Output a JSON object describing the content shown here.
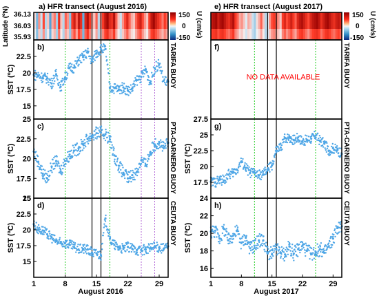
{
  "chart_data": {
    "type": "scatter",
    "colors": {
      "points": "#4ea6e6",
      "green_line": "#22cc22",
      "purple_line": "#b266d6",
      "event_line": "#000000",
      "na_text": "#ff0000",
      "frame": "#000000"
    },
    "panels": [
      {
        "id": "a",
        "kind": "heatmap",
        "title": "a) HFR transect  (August 2016)",
        "ylabel": "Latitude (ºN)",
        "yticks": [
          "36.13",
          "36.03",
          "35.93"
        ],
        "xlim": [
          1,
          31
        ],
        "colorbar": {
          "label": "U (cm/s)",
          "ticks": [
            "150",
            "0",
            "-150"
          ],
          "range": [
            -150,
            150
          ]
        },
        "stripes_u": [
          10,
          -60,
          40,
          -20,
          70,
          -30,
          20,
          -80,
          30,
          50,
          -40,
          90,
          20,
          -30,
          60,
          40,
          -50,
          80,
          110,
          60,
          120,
          90,
          -70,
          100,
          130,
          80,
          30,
          20,
          60,
          -30,
          40,
          80,
          120,
          140,
          100,
          90,
          130,
          60,
          20,
          -20,
          40,
          70,
          100,
          60,
          30,
          20,
          60,
          90,
          110,
          70,
          40,
          20,
          80,
          120,
          140,
          110,
          90,
          70,
          50,
          80,
          60
        ]
      },
      {
        "id": "b",
        "kind": "scatter",
        "panel_label": "b)",
        "ylabel": "SST (ºC)",
        "side_label": "TARIFA  BUOY",
        "xlim": [
          1,
          31
        ],
        "ylim": [
          13,
          25
        ],
        "yticks": [
          15,
          17.5,
          20,
          22.5
        ],
        "x": [
          1,
          2,
          3,
          4,
          5,
          6,
          7,
          8,
          9,
          10,
          11,
          12,
          13,
          14,
          15,
          16,
          17,
          18,
          19,
          20,
          21,
          22,
          23,
          24,
          25,
          26,
          27,
          28,
          29,
          30,
          31
        ],
        "y": [
          19.7,
          19.6,
          19.3,
          19.2,
          18.4,
          19.8,
          17.9,
          19.3,
          20.8,
          20.8,
          21.9,
          22.4,
          23.1,
          21.8,
          23.0,
          23.6,
          23.6,
          17.7,
          17.7,
          17.5,
          17.8,
          17.3,
          17.6,
          18.9,
          19.4,
          20.5,
          18.5,
          20.7,
          21.3,
          18.8,
          18.7
        ],
        "vlines_green": [
          8,
          18
        ],
        "vlines_purple": [
          25,
          28
        ],
        "vlines_black": [
          14,
          16
        ]
      },
      {
        "id": "c",
        "kind": "scatter",
        "panel_label": "c)",
        "ylabel": "SST (ºC)",
        "side_label": "PTA-CARNERO  BUOY",
        "xlim": [
          1,
          31
        ],
        "ylim": [
          15,
          25
        ],
        "yticks": [
          15,
          17.5,
          20,
          22.5,
          25
        ],
        "x": [
          1,
          2,
          3,
          4,
          5,
          6,
          7,
          8,
          9,
          10,
          11,
          12,
          13,
          14,
          15,
          16,
          17,
          18,
          19,
          20,
          21,
          22,
          23,
          24,
          25,
          26,
          27,
          28,
          29,
          30,
          31
        ],
        "y": [
          20.9,
          19.6,
          18.1,
          17.5,
          19.0,
          19.7,
          18.4,
          19.7,
          20.5,
          21.0,
          21.3,
          21.8,
          22.5,
          22.9,
          23.2,
          23.3,
          23.1,
          22.4,
          20.4,
          19.1,
          18.2,
          17.5,
          17.9,
          18.3,
          19.8,
          19.2,
          20.8,
          21.8,
          22.1,
          21.3,
          22.0
        ],
        "vlines_green": [
          8,
          18
        ],
        "vlines_purple": [
          25,
          28
        ],
        "vlines_black": [
          14,
          16
        ]
      },
      {
        "id": "d",
        "kind": "scatter",
        "panel_label": "d)",
        "ylabel": "SST (ºC)",
        "side_label": "CEUTA  BUOY",
        "xlim": [
          1,
          31
        ],
        "ylim": [
          12.5,
          25
        ],
        "yticks": [
          15,
          17.5,
          20,
          22.5,
          25
        ],
        "xticks": [
          1,
          8,
          15,
          22,
          29
        ],
        "xlabel": "August 2016",
        "x": [
          1,
          2,
          3,
          4,
          5,
          6,
          7,
          8,
          9,
          10,
          11,
          12,
          13,
          14,
          15,
          16,
          17,
          18,
          19,
          20,
          21,
          22,
          23,
          24,
          25,
          26,
          27,
          28,
          29,
          30,
          31
        ],
        "y": [
          20.9,
          20.1,
          19.9,
          19.3,
          18.8,
          18.2,
          17.9,
          17.9,
          17.6,
          17.3,
          16.9,
          17.0,
          16.9,
          16.4,
          16.3,
          16.0,
          21.8,
          18.6,
          17.6,
          17.2,
          17.0,
          17.3,
          17.0,
          16.8,
          16.8,
          16.9,
          17.1,
          17.3,
          17.2,
          17.0,
          17.4
        ],
        "vlines_green": [
          8,
          18
        ],
        "vlines_purple": [
          25,
          28
        ],
        "vlines_black": [
          14,
          16
        ]
      },
      {
        "id": "e",
        "kind": "heatmap",
        "title": "e) HFR transect  (August 2017)",
        "xlim": [
          1,
          31
        ],
        "colorbar": {
          "label": "U (cm/s)",
          "ticks": [
            "150",
            "0",
            "-150"
          ],
          "range": [
            -150,
            150
          ]
        },
        "stripes_u": [
          120,
          130,
          140,
          110,
          130,
          140,
          120,
          100,
          90,
          110,
          130,
          80,
          60,
          30,
          40,
          20,
          -10,
          30,
          20,
          -20,
          -40,
          10,
          30,
          60,
          20,
          -30,
          -10,
          40,
          70,
          80,
          60,
          40,
          20,
          80,
          100,
          70,
          90,
          110,
          80,
          60,
          100,
          120,
          130,
          110,
          90,
          70,
          100,
          120,
          130,
          140,
          120,
          90,
          110,
          130,
          140,
          120,
          100,
          90,
          110,
          120,
          100
        ]
      },
      {
        "id": "f",
        "kind": "empty",
        "panel_label": "f)",
        "side_label": "TARIFA  BUOY",
        "message": "NO DATA AVAILABLE",
        "xlim": [
          1,
          31
        ],
        "vlines_green": [
          11,
          25
        ],
        "vlines_black": [
          14,
          16
        ]
      },
      {
        "id": "g",
        "kind": "scatter",
        "panel_label": "g)",
        "ylabel": "SST (ºC)",
        "side_label": "PTA-CARNERO  BUOY",
        "xlim": [
          1,
          31
        ],
        "ylim": [
          15,
          27.5
        ],
        "yticks": [
          17.5,
          20,
          22.5,
          25,
          27.5
        ],
        "x": [
          1,
          2,
          3,
          4,
          5,
          6,
          7,
          8,
          9,
          10,
          11,
          12,
          13,
          14,
          15,
          16,
          17,
          18,
          19,
          20,
          21,
          22,
          23,
          24,
          25,
          26,
          27,
          28,
          29,
          30,
          31
        ],
        "y": [
          17.6,
          17.5,
          17.9,
          17.8,
          18.7,
          19.0,
          19.5,
          20.8,
          19.8,
          19.0,
          19.0,
          18.6,
          18.8,
          19.5,
          20.2,
          22.5,
          23.0,
          24.5,
          24.6,
          24.2,
          24.6,
          24.0,
          24.2,
          24.4,
          24.9,
          24.1,
          23.6,
          22.5,
          22.9,
          22.6,
          22.0
        ],
        "vlines_green": [
          11,
          25
        ],
        "vlines_black": [
          14,
          16
        ]
      },
      {
        "id": "h",
        "kind": "scatter",
        "panel_label": "h)",
        "ylabel": "SST (ºC)",
        "side_label": "CEUTA  BUOY",
        "xlim": [
          1,
          31
        ],
        "ylim": [
          15,
          24
        ],
        "yticks": [
          16,
          18,
          20,
          22,
          24
        ],
        "xticks": [
          1,
          8,
          15,
          22,
          29
        ],
        "xlabel": "August 2017",
        "x": [
          1,
          2,
          3,
          4,
          5,
          6,
          7,
          8,
          9,
          10,
          11,
          12,
          13,
          14,
          15,
          16,
          17,
          18,
          19,
          20,
          21,
          22,
          23,
          24,
          25,
          26,
          27,
          28,
          29,
          30,
          31
        ],
        "y": [
          20.2,
          20.3,
          19.4,
          20.5,
          19.2,
          19.7,
          20.3,
          18.9,
          19.5,
          18.3,
          18.6,
          19.2,
          19.2,
          17.8,
          17.6,
          18.2,
          17.8,
          17.6,
          18.5,
          17.7,
          18.2,
          18.6,
          18.0,
          17.7,
          17.9,
          18.2,
          17.8,
          18.5,
          19.4,
          20.6,
          20.8
        ],
        "vlines_green": [
          11,
          25
        ],
        "vlines_black": [
          14,
          16
        ]
      }
    ]
  }
}
